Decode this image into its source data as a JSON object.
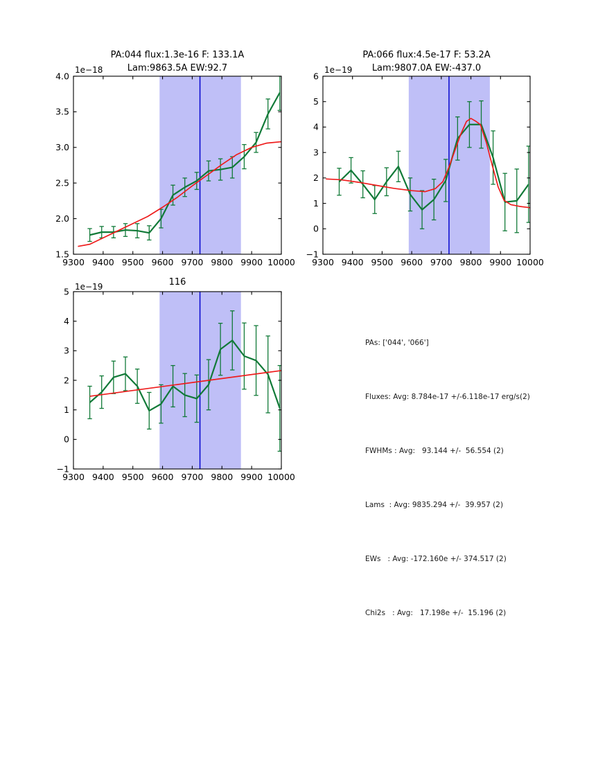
{
  "page": {
    "background": "#ffffff"
  },
  "colors": {
    "data": "#117a38",
    "fit": "#ee1c1c",
    "vline": "#0404cf",
    "band": "#bfbff7",
    "axis": "#000000"
  },
  "stats_panel": {
    "lines": [
      "PAs: ['044', '066']",
      "Fluxes: Avg: 8.784e-17 +/-6.118e-17 erg/s(2)",
      "FWHMs : Avg:   93.144 +/-  56.554 (2)",
      "Lams  : Avg: 9835.294 +/-  39.957 (2)",
      "EWs   : Avg: -172.160e +/- 374.517 (2)",
      "Chi2s   : Avg:   17.198e +/-  15.196 (2)"
    ]
  },
  "chart_data": [
    {
      "id": "pa044",
      "type": "line",
      "title": "PA:044 flux:1.3e-16 F: 133.1A",
      "subtitle": "Lam:9863.5A EW:92.7",
      "y_offset_label": "1e−18",
      "xlim": [
        9300,
        10000
      ],
      "ylim": [
        1.5,
        4.0
      ],
      "xticks": [
        9300,
        9400,
        9500,
        9600,
        9700,
        9800,
        9900,
        10000
      ],
      "xtick_labels": [
        "9300",
        "9400",
        "9500",
        "9600",
        "9700",
        "9800",
        "9900",
        "10000"
      ],
      "yticks": [
        1.5,
        2.0,
        2.5,
        3.0,
        3.5,
        4.0
      ],
      "ytick_labels": [
        "1.5",
        "2.0",
        "2.5",
        "3.0",
        "3.5",
        "4.0"
      ],
      "band": {
        "from": 9590,
        "to": 9864
      },
      "vline": 9726,
      "x": [
        9355,
        9395,
        9435,
        9475,
        9515,
        9555,
        9595,
        9635,
        9675,
        9715,
        9755,
        9795,
        9835,
        9875,
        9915,
        9955,
        9995
      ],
      "series": [
        {
          "name": "spectrum",
          "role": "data",
          "values": [
            1.77,
            1.81,
            1.81,
            1.84,
            1.83,
            1.8,
            2.0,
            2.33,
            2.44,
            2.53,
            2.67,
            2.69,
            2.72,
            2.87,
            3.07,
            3.47,
            3.77
          ],
          "errors": [
            0.09,
            0.08,
            0.08,
            0.09,
            0.1,
            0.1,
            0.13,
            0.14,
            0.13,
            0.12,
            0.14,
            0.15,
            0.15,
            0.17,
            0.14,
            0.21,
            0.25
          ]
        },
        {
          "name": "fit",
          "role": "fit",
          "x": [
            9315,
            9355,
            9400,
            9450,
            9500,
            9550,
            9600,
            9650,
            9700,
            9750,
            9800,
            9850,
            9900,
            9950,
            10000
          ],
          "values": [
            1.61,
            1.64,
            1.73,
            1.83,
            1.93,
            2.03,
            2.16,
            2.3,
            2.46,
            2.61,
            2.76,
            2.9,
            3.0,
            3.06,
            3.08
          ]
        }
      ]
    },
    {
      "id": "pa066",
      "type": "line",
      "title": "PA:066 flux:4.5e-17 F: 53.2A",
      "subtitle": "Lam:9807.0A EW:-437.0",
      "y_offset_label": "1e−19",
      "xlim": [
        9300,
        10000
      ],
      "ylim": [
        -1,
        6
      ],
      "xticks": [
        9300,
        9400,
        9500,
        9600,
        9700,
        9800,
        9900,
        10000
      ],
      "xtick_labels": [
        "9300",
        "9400",
        "9500",
        "9600",
        "9700",
        "9800",
        "9900",
        "10000"
      ],
      "yticks": [
        -1,
        0,
        1,
        2,
        3,
        4,
        5,
        6
      ],
      "ytick_labels": [
        "−1",
        "0",
        "1",
        "2",
        "3",
        "4",
        "5",
        "6"
      ],
      "band": {
        "from": 9590,
        "to": 9864
      },
      "vline": 9726,
      "x": [
        9355,
        9395,
        9435,
        9475,
        9515,
        9555,
        9595,
        9635,
        9675,
        9715,
        9755,
        9795,
        9835,
        9875,
        9915,
        9955,
        9995
      ],
      "series": [
        {
          "name": "spectrum",
          "role": "data",
          "values": [
            1.85,
            2.3,
            1.75,
            1.15,
            1.85,
            2.45,
            1.35,
            0.75,
            1.15,
            1.9,
            3.55,
            4.1,
            4.1,
            2.8,
            1.05,
            1.1,
            1.75
          ],
          "errors": [
            0.53,
            0.5,
            0.53,
            0.55,
            0.55,
            0.6,
            0.65,
            0.75,
            0.8,
            0.83,
            0.85,
            0.9,
            0.93,
            1.05,
            1.13,
            1.25,
            1.5
          ]
        },
        {
          "name": "fit",
          "role": "fit",
          "x": [
            9310,
            9360,
            9420,
            9480,
            9540,
            9600,
            9645,
            9680,
            9705,
            9725,
            9745,
            9765,
            9785,
            9800,
            9815,
            9832,
            9852,
            9872,
            9892,
            9912,
            9935,
            9965,
            10000
          ],
          "values": [
            1.96,
            1.93,
            1.83,
            1.71,
            1.59,
            1.5,
            1.46,
            1.58,
            1.85,
            2.4,
            3.05,
            3.7,
            4.22,
            4.34,
            4.24,
            4.1,
            3.4,
            2.5,
            1.65,
            1.12,
            0.95,
            0.88,
            0.83
          ]
        }
      ]
    },
    {
      "id": "avg116",
      "type": "line",
      "title": "116",
      "subtitle": "",
      "y_offset_label": "1e−19",
      "xlim": [
        9300,
        10000
      ],
      "ylim": [
        -1,
        5
      ],
      "xticks": [
        9300,
        9400,
        9500,
        9600,
        9700,
        9800,
        9900,
        10000
      ],
      "xtick_labels": [
        "9300",
        "9400",
        "9500",
        "9600",
        "9700",
        "9800",
        "9900",
        "10000"
      ],
      "yticks": [
        -1,
        0,
        1,
        2,
        3,
        4,
        5
      ],
      "ytick_labels": [
        "−1",
        "0",
        "1",
        "2",
        "3",
        "4",
        "5"
      ],
      "band": {
        "from": 9590,
        "to": 9864
      },
      "vline": 9726,
      "x": [
        9355,
        9395,
        9435,
        9475,
        9515,
        9555,
        9595,
        9635,
        9675,
        9715,
        9755,
        9795,
        9835,
        9875,
        9915,
        9955,
        9995
      ],
      "series": [
        {
          "name": "spectrum",
          "role": "data",
          "values": [
            1.25,
            1.6,
            2.1,
            2.22,
            1.8,
            0.97,
            1.2,
            1.8,
            1.5,
            1.38,
            1.85,
            3.05,
            3.35,
            2.82,
            2.67,
            2.2,
            1.05
          ],
          "errors": [
            0.55,
            0.55,
            0.55,
            0.57,
            0.58,
            0.62,
            0.65,
            0.7,
            0.73,
            0.8,
            0.85,
            0.88,
            1.0,
            1.12,
            1.18,
            1.3,
            1.45
          ]
        },
        {
          "name": "fit",
          "role": "fit",
          "x": [
            9355,
            10000
          ],
          "values": [
            1.46,
            2.33
          ]
        }
      ]
    }
  ]
}
